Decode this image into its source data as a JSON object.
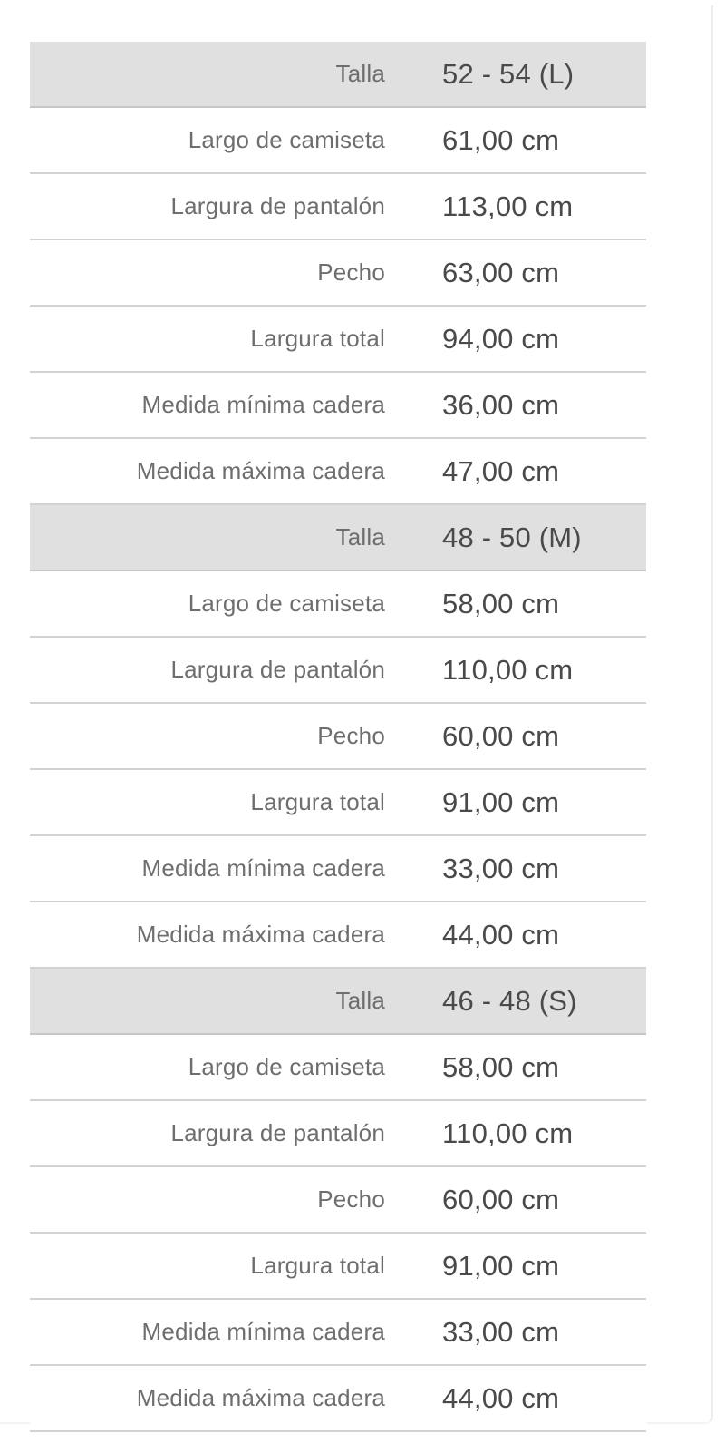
{
  "colors": {
    "header_row_bg": "#e0e0e0",
    "row_border": "#d2d2d2",
    "label_text": "#6e6e6e",
    "value_text": "#4a4a4a"
  },
  "table": {
    "sections": [
      {
        "header": {
          "label": "Talla",
          "value": "52 - 54 (L)"
        },
        "rows": [
          {
            "label": "Largo de camiseta",
            "value": "61,00 cm"
          },
          {
            "label": "Largura de pantalón",
            "value": "113,00 cm"
          },
          {
            "label": "Pecho",
            "value": "63,00 cm"
          },
          {
            "label": "Largura total",
            "value": "94,00 cm"
          },
          {
            "label": "Medida mínima cadera",
            "value": "36,00 cm"
          },
          {
            "label": "Medida máxima cadera",
            "value": "47,00 cm"
          }
        ]
      },
      {
        "header": {
          "label": "Talla",
          "value": "48 - 50 (M)"
        },
        "rows": [
          {
            "label": "Largo de camiseta",
            "value": "58,00 cm"
          },
          {
            "label": "Largura de pantalón",
            "value": "110,00 cm"
          },
          {
            "label": "Pecho",
            "value": "60,00 cm"
          },
          {
            "label": "Largura total",
            "value": "91,00 cm"
          },
          {
            "label": "Medida mínima cadera",
            "value": "33,00 cm"
          },
          {
            "label": "Medida máxima cadera",
            "value": "44,00 cm"
          }
        ]
      },
      {
        "header": {
          "label": "Talla",
          "value": "46 - 48 (S)"
        },
        "rows": [
          {
            "label": "Largo de camiseta",
            "value": "58,00 cm"
          },
          {
            "label": "Largura de pantalón",
            "value": "110,00 cm"
          },
          {
            "label": "Pecho",
            "value": "60,00 cm"
          },
          {
            "label": "Largura total",
            "value": "91,00 cm"
          },
          {
            "label": "Medida mínima cadera",
            "value": "33,00 cm"
          },
          {
            "label": "Medida máxima cadera",
            "value": "44,00 cm"
          }
        ]
      }
    ]
  }
}
